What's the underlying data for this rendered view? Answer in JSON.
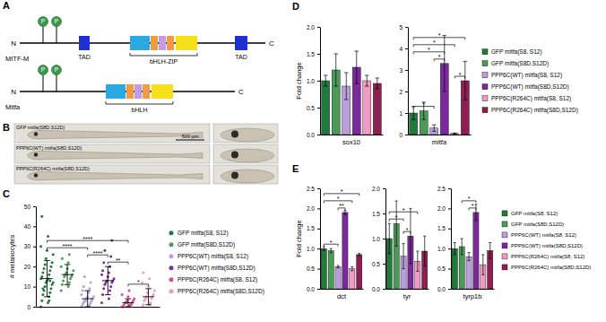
{
  "panel_labels": [
    "A",
    "B",
    "C",
    "D",
    "E"
  ],
  "diagram": {
    "proteins": [
      {
        "name": "MITF-M",
        "n": "N",
        "c": "C",
        "sites": [
          "P",
          "P"
        ],
        "domains": [
          "TAD",
          "bHLH-ZIP",
          "TAD"
        ]
      },
      {
        "name": "Mitfa",
        "n": "N",
        "c": "C",
        "sites": [
          "P",
          "P"
        ],
        "domains": [
          "bHLH"
        ]
      }
    ]
  },
  "images": {
    "labels": [
      "GFP mitfa(S8D,S12D)",
      "PPP6C(WT) mitfa(S8D,S12D)",
      "PPP6C(R264C) mitfa(S8D,S12D)"
    ],
    "scale_bar": "500 µm"
  },
  "chart_data": [
    {
      "type": "strip",
      "ylabel": "# melanocytes",
      "categories": [
        "GFP mitfa(S8, S12)",
        "GFP mitfa(S8D,S12D)",
        "PPP6C(WT) mitfa(S8, S12)",
        "PPP6C(WT) mitfa(S8D,S12D)",
        "PPP6C(R264C) mitfa(S8, S12)",
        "PPP6C(R264C) mitfa(S8D,S12D)"
      ],
      "colors": [
        "#1e7b3a",
        "#4c9a5a",
        "#b9a0dd",
        "#7b2a9c",
        "#e0459a",
        "#f29ac4"
      ],
      "points": [
        [
          0,
          2,
          3,
          5,
          6,
          7,
          8,
          9,
          10,
          11,
          12,
          12,
          13,
          14,
          14,
          15,
          16,
          17,
          18,
          19,
          20,
          21,
          22,
          24,
          26,
          28,
          30,
          35,
          45,
          3,
          9,
          13
        ],
        [
          8,
          10,
          11,
          12,
          13,
          14,
          15,
          15,
          16,
          16,
          17,
          18,
          19,
          20,
          22,
          24,
          26
        ],
        [
          0,
          0,
          1,
          1,
          2,
          2,
          3,
          3,
          3,
          4,
          4,
          5,
          5,
          6,
          7,
          8,
          9,
          10,
          12,
          15
        ],
        [
          2,
          4,
          6,
          8,
          9,
          10,
          11,
          12,
          12,
          13,
          13,
          14,
          15,
          16,
          17,
          18,
          20,
          22,
          25,
          28,
          33
        ],
        [
          0,
          0,
          0,
          1,
          1,
          1,
          2,
          2,
          2,
          3,
          3,
          4,
          5,
          6,
          8
        ],
        [
          0,
          1,
          1,
          2,
          3,
          4,
          4,
          5,
          5,
          6,
          7,
          8,
          10,
          12,
          14,
          17
        ]
      ],
      "means": [
        14,
        16,
        4,
        13,
        2,
        5
      ],
      "errors": [
        9,
        5,
        4,
        7,
        2,
        4
      ],
      "ylim": [
        0,
        50
      ],
      "yticks": [
        0,
        10,
        20,
        30,
        40,
        50
      ],
      "tick_labels": "y",
      "legend": "right",
      "significance": [
        {
          "groups": [
            0,
            4
          ],
          "label": "****"
        },
        {
          "groups": [
            0,
            2
          ],
          "label": "****"
        },
        {
          "groups": [
            3,
            4
          ],
          "label": "**"
        },
        {
          "groups": [
            2,
            3
          ],
          "label": "****"
        },
        {
          "groups": [
            4,
            5
          ],
          "label": "*"
        }
      ]
    },
    {
      "type": "bar",
      "xlabel": "sox10",
      "ylabel": "Fold change",
      "colors": [
        "#1e7b3a",
        "#4c9a5a",
        "#b9a0dd",
        "#7b2a9c",
        "#f29ac4",
        "#8e1f52"
      ],
      "values": [
        1.0,
        1.2,
        0.9,
        1.25,
        1.0,
        0.95
      ],
      "errors": [
        0.1,
        0.3,
        0.25,
        0.3,
        0.1,
        0.1
      ],
      "ylim": [
        0,
        2
      ],
      "yticks": [
        {
          "value": 0,
          "label": "0.0"
        },
        0.5,
        {
          "value": 1,
          "label": "1.0"
        },
        1.5,
        {
          "value": 2,
          "label": "2.0"
        }
      ],
      "tick_labels": "y"
    },
    {
      "type": "bar",
      "xlabel": "mitfa",
      "categories": [
        "GFP mitfa(S8, S12)",
        "GFP mitfa(S8D,S12D)",
        "PPP6C(WT) mitfa(S8, S12)",
        "PPP6C(WT) mitfa(S8D,S12D)",
        "PPP6C(R264C) mitfa(S8, S12)",
        "PPP6C(R264C) mitfa(S8D,S12D)"
      ],
      "colors": [
        "#1e7b3a",
        "#4c9a5a",
        "#b9a0dd",
        "#7b2a9c",
        "#f29ac4",
        "#8e1f52"
      ],
      "values": [
        1.0,
        1.1,
        0.3,
        3.3,
        0.05,
        2.5
      ],
      "errors": [
        0.3,
        0.4,
        0.15,
        1.3,
        0.02,
        0.9
      ],
      "ylim": [
        0,
        5
      ],
      "yticks": [
        0,
        1,
        2,
        3,
        4,
        5
      ],
      "tick_labels": "y",
      "legend": "right",
      "significance": [
        {
          "groups": [
            0,
            5
          ],
          "label": "*"
        },
        {
          "groups": [
            0,
            4
          ],
          "label": "*"
        },
        {
          "groups": [
            0,
            3
          ],
          "label": "*"
        },
        {
          "groups": [
            0,
            2
          ],
          "label": "*"
        },
        {
          "groups": [
            2,
            3
          ],
          "label": "*"
        },
        {
          "groups": [
            4,
            5
          ],
          "label": "*"
        }
      ]
    },
    {
      "type": "bar",
      "xlabel": "dct",
      "ylabel": "Fold change",
      "colors": [
        "#1e7b3a",
        "#4c9a5a",
        "#b9a0dd",
        "#7b2a9c",
        "#f29ac4",
        "#8e1f52"
      ],
      "values": [
        1.0,
        0.95,
        0.55,
        1.9,
        0.5,
        0.85
      ],
      "errors": [
        0.05,
        0.05,
        0.03,
        0.05,
        0.05,
        0.03
      ],
      "ylim": [
        0,
        2.5
      ],
      "yticks": [
        {
          "value": 0,
          "label": "0.0"
        },
        0.5,
        {
          "value": 1,
          "label": "1.0"
        },
        1.5,
        {
          "value": 2,
          "label": "2.0"
        },
        2.5
      ],
      "tick_labels": "y",
      "significance": [
        {
          "groups": [
            0,
            5
          ],
          "label": "*"
        },
        {
          "groups": [
            0,
            4
          ],
          "label": "*"
        },
        {
          "groups": [
            0,
            2
          ],
          "label": "*"
        },
        {
          "groups": [
            2,
            3
          ],
          "label": "**"
        }
      ]
    },
    {
      "type": "bar",
      "xlabel": "tyr",
      "colors": [
        "#1e7b3a",
        "#4c9a5a",
        "#b9a0dd",
        "#7b2a9c",
        "#f29ac4",
        "#8e1f52"
      ],
      "values": [
        1.0,
        1.3,
        0.65,
        1.05,
        0.55,
        0.75
      ],
      "errors": [
        0.3,
        0.45,
        0.25,
        0.55,
        0.2,
        0.3
      ],
      "ylim": [
        0,
        2
      ],
      "yticks": [
        {
          "value": 0,
          "label": "0.0"
        },
        0.5,
        {
          "value": 1,
          "label": "1.0"
        },
        1.5,
        {
          "value": 2,
          "label": "2.0"
        }
      ],
      "tick_labels": "y",
      "significance": [
        {
          "groups": [
            0,
            4
          ],
          "label": "*"
        },
        {
          "groups": [
            0,
            2
          ],
          "label": "*"
        },
        {
          "groups": [
            2,
            3
          ],
          "label": "*"
        }
      ]
    },
    {
      "type": "bar",
      "xlabel": "tyrp1b",
      "categories": [
        "GFP mitfa(S8, S12)",
        "GFP mitfa(S8D,S12D)",
        "PPP6C(WT) mitfa(S8, S12)",
        "PPP6C(WT) mitfa(S8D,S12D)",
        "PPP6C(R264C) mitfa(S8, S12)",
        "PPP6C(R264C) mitfa(S8D,S12D)"
      ],
      "colors": [
        "#1e7b3a",
        "#4c9a5a",
        "#b9a0dd",
        "#7b2a9c",
        "#f29ac4",
        "#8e1f52"
      ],
      "values": [
        1.0,
        1.05,
        0.8,
        1.9,
        0.6,
        0.95
      ],
      "errors": [
        0.15,
        0.2,
        0.1,
        0.2,
        0.25,
        0.2
      ],
      "ylim": [
        0,
        2.5
      ],
      "yticks": [
        {
          "value": 0,
          "label": "0.0"
        },
        0.5,
        {
          "value": 1,
          "label": "1.0"
        },
        1.5,
        {
          "value": 2,
          "label": "2.0"
        },
        2.5
      ],
      "tick_labels": "y",
      "legend": "right",
      "significance": [
        {
          "groups": [
            1,
            3
          ],
          "label": "*"
        },
        {
          "groups": [
            2,
            3
          ],
          "label": "*"
        }
      ]
    }
  ]
}
